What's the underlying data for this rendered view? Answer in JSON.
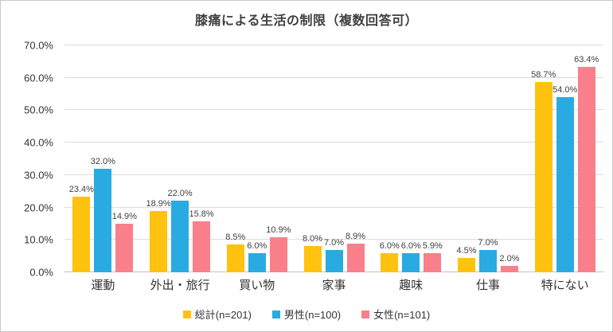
{
  "chart_data": {
    "type": "bar",
    "title": "膝痛による生活の制限（複数回答可）",
    "categories": [
      "運動",
      "外出・旅行",
      "買い物",
      "家事",
      "趣味",
      "仕事",
      "特にない"
    ],
    "series": [
      {
        "name": "総計(n=201)",
        "color": "#FFC20E",
        "values": [
          23.4,
          18.9,
          8.5,
          8.0,
          6.0,
          4.5,
          58.7
        ]
      },
      {
        "name": "男性(n=100)",
        "color": "#29ABE2",
        "values": [
          32.0,
          22.0,
          6.0,
          7.0,
          6.0,
          7.0,
          54.0
        ]
      },
      {
        "name": "女性(n=101)",
        "color": "#F9808A",
        "values": [
          14.9,
          15.8,
          10.9,
          8.9,
          5.9,
          2.0,
          63.4
        ]
      }
    ],
    "ylim": [
      0,
      70
    ],
    "ytick_labels": [
      "0.0%",
      "10.0%",
      "20.0%",
      "30.0%",
      "40.0%",
      "50.0%",
      "60.0%",
      "70.0%"
    ],
    "grid": true,
    "legend_position": "bottom",
    "value_label_suffix": "%",
    "colors": {
      "title_text": "#3f3f3f",
      "axis_text": "#333333",
      "value_label_text": "#404040",
      "gridline": "#dcdcdc",
      "frame_border": "#c9c9c9",
      "background": "#ffffff"
    }
  }
}
